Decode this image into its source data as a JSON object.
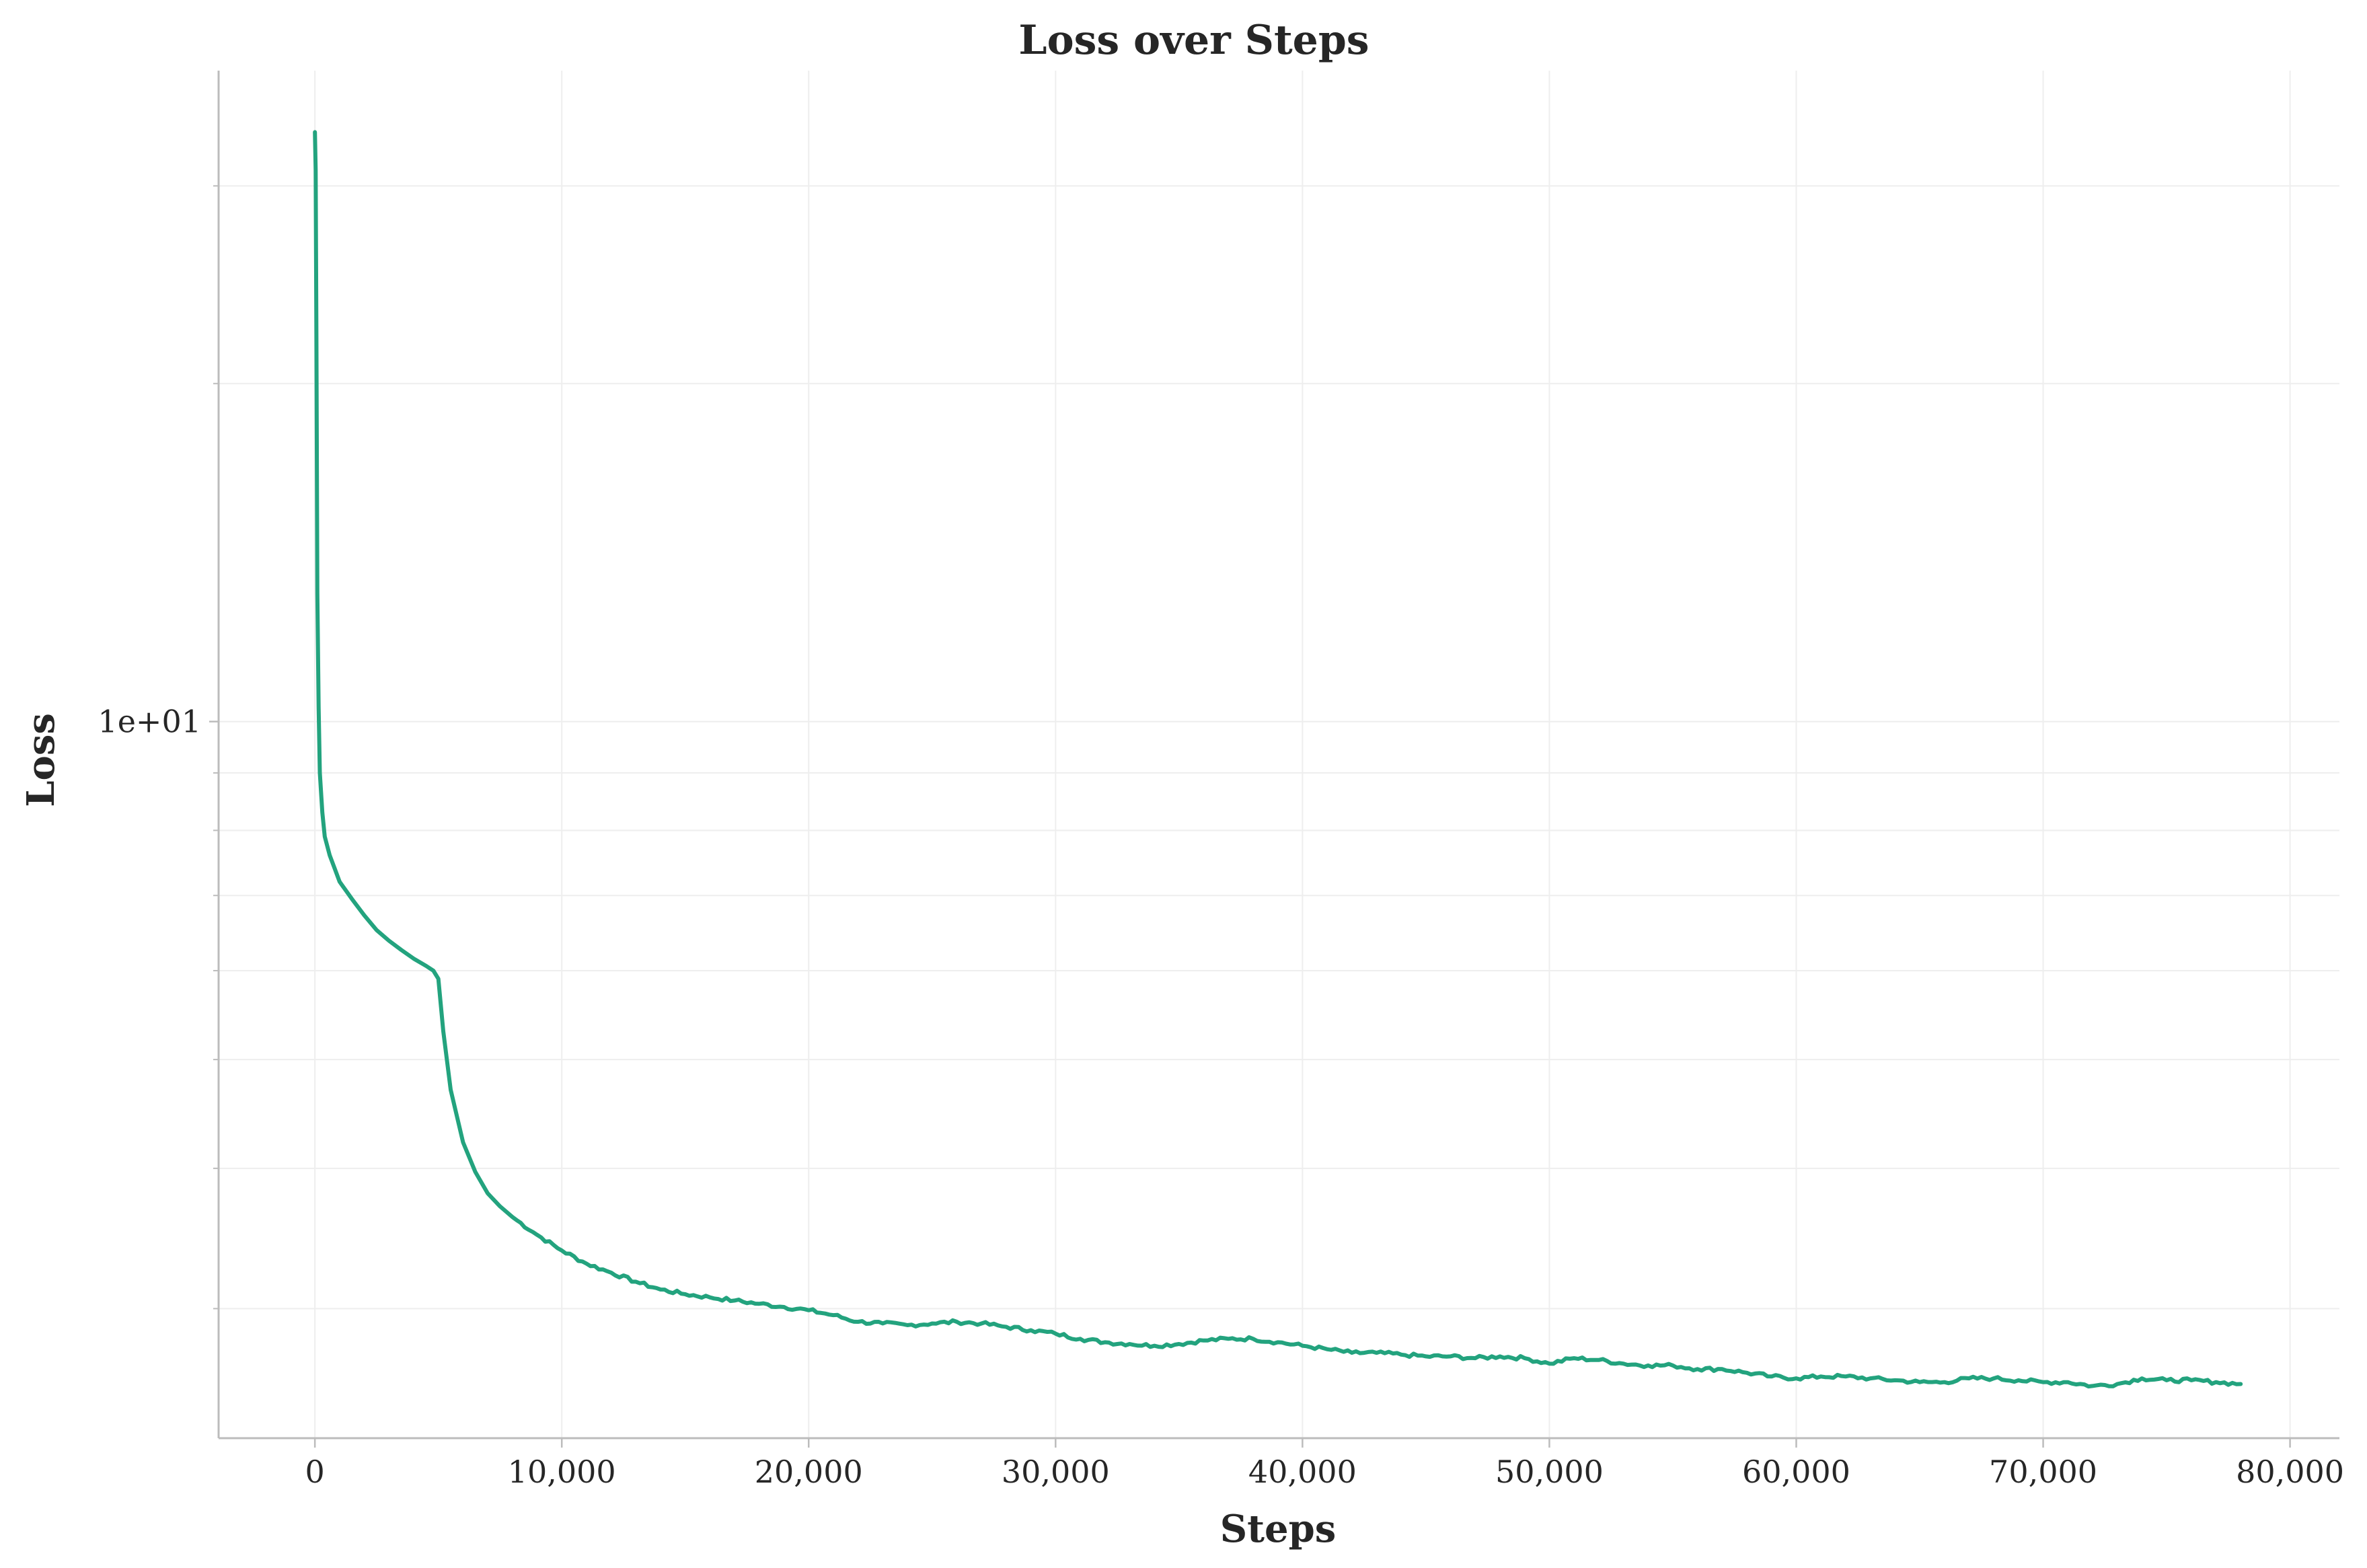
{
  "chart_data": {
    "type": "line",
    "title": "Loss over Steps",
    "xlabel": "Steps",
    "ylabel": "Loss",
    "x_scale": "linear",
    "y_scale": "log",
    "xlim": [
      -3900,
      82000
    ],
    "ylim": [
      2.3,
      38
    ],
    "grid": true,
    "legend": "none",
    "colors": {
      "line": "#23a37e",
      "grid": "#eeeeee",
      "axis": "#bcbcbc",
      "text": "#262626"
    },
    "x_ticks": [
      {
        "value": 0,
        "label": "0"
      },
      {
        "value": 10000,
        "label": "10,000"
      },
      {
        "value": 20000,
        "label": "20,000"
      },
      {
        "value": 30000,
        "label": "30,000"
      },
      {
        "value": 40000,
        "label": "40,000"
      },
      {
        "value": 50000,
        "label": "50,000"
      },
      {
        "value": 60000,
        "label": "60,000"
      },
      {
        "value": 70000,
        "label": "70,000"
      },
      {
        "value": 80000,
        "label": "80,000"
      }
    ],
    "y_major_ticks": [
      {
        "value": 10,
        "label": "1e+01"
      }
    ],
    "y_minor_ticks": [
      3,
      4,
      5,
      6,
      7,
      8,
      9,
      20,
      30
    ],
    "series": [
      {
        "x": [
          0,
          30,
          60,
          100,
          150,
          200,
          300,
          400,
          600,
          800,
          1000,
          1500,
          2000,
          2500,
          3000,
          3500,
          4000,
          4500,
          4800,
          5000,
          5200,
          5500,
          6000,
          6500,
          7000,
          7500,
          8000,
          9000,
          10000,
          11000,
          12000,
          13000,
          14000,
          15000,
          16000,
          17000,
          18000,
          19000,
          20000,
          21000,
          22000,
          23000,
          24000,
          25000,
          26000,
          27000,
          28000,
          29000,
          30000,
          31000,
          32000,
          33000,
          34000,
          35000,
          36000,
          37000,
          38000,
          39000,
          40000,
          41000,
          42000,
          43000,
          44000,
          45000,
          46000,
          47000,
          48000,
          49000,
          50000,
          51000,
          52000,
          53000,
          54000,
          55000,
          56000,
          57000,
          58000,
          59000,
          60000,
          61000,
          62000,
          63000,
          64000,
          65000,
          66000,
          67000,
          68000,
          69000,
          70000,
          71000,
          72000,
          73000,
          74000,
          75000,
          76000,
          77000,
          78000
        ],
        "y": [
          33.5,
          31,
          22,
          13,
          10.3,
          9.0,
          8.3,
          7.9,
          7.6,
          7.4,
          7.2,
          6.95,
          6.72,
          6.52,
          6.38,
          6.26,
          6.15,
          6.06,
          6.0,
          5.9,
          5.3,
          4.7,
          4.22,
          3.97,
          3.8,
          3.7,
          3.62,
          3.49,
          3.38,
          3.29,
          3.23,
          3.17,
          3.12,
          3.09,
          3.07,
          3.05,
          3.03,
          3.01,
          2.99,
          2.96,
          2.92,
          2.91,
          2.9,
          2.91,
          2.92,
          2.91,
          2.89,
          2.87,
          2.85,
          2.82,
          2.8,
          2.79,
          2.78,
          2.79,
          2.81,
          2.82,
          2.82,
          2.8,
          2.78,
          2.76,
          2.74,
          2.74,
          2.73,
          2.72,
          2.72,
          2.71,
          2.72,
          2.71,
          2.68,
          2.71,
          2.7,
          2.68,
          2.67,
          2.67,
          2.65,
          2.65,
          2.63,
          2.61,
          2.6,
          2.61,
          2.61,
          2.6,
          2.59,
          2.58,
          2.58,
          2.6,
          2.6,
          2.59,
          2.58,
          2.58,
          2.56,
          2.57,
          2.6,
          2.59,
          2.59,
          2.58,
          2.57
        ]
      }
    ]
  }
}
